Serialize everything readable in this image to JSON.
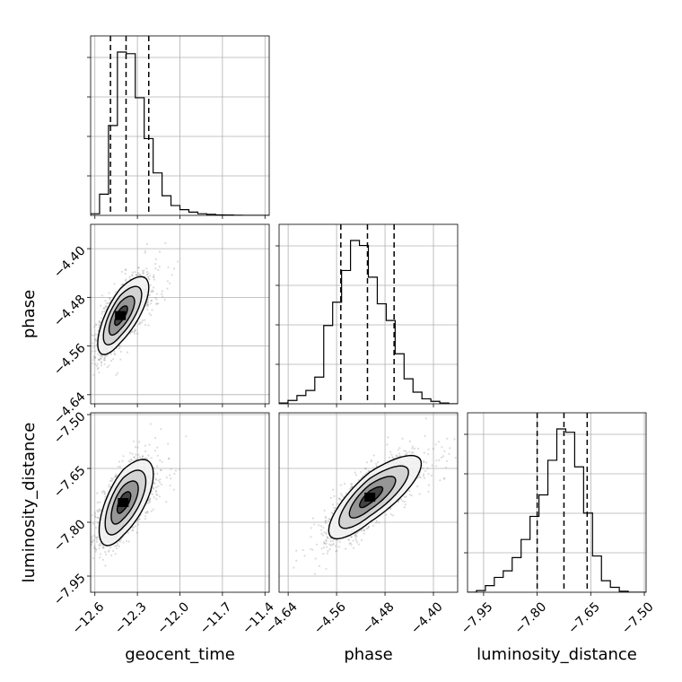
{
  "chart_data": {
    "type": "corner",
    "parameters": [
      "geocent_time",
      "phase",
      "luminosity_distance"
    ],
    "axes": {
      "geocent_time": {
        "label": "geocent_time",
        "range": [
          -12.63,
          -11.37
        ],
        "ticks": [
          -12.6,
          -12.3,
          -12.0,
          -11.7,
          -11.4
        ],
        "tick_labels": [
          "−12.6",
          "−12.3",
          "−12.0",
          "−11.7",
          "−11.4"
        ]
      },
      "phase": {
        "label": "phase",
        "range": [
          -4.655,
          -4.36
        ],
        "ticks": [
          -4.64,
          -4.56,
          -4.48,
          -4.4
        ],
        "tick_labels": [
          "−4.64",
          "−4.56",
          "−4.48",
          "−4.40"
        ]
      },
      "luminosity_distance": {
        "label": "luminosity_distance",
        "range": [
          -7.995,
          -7.495
        ],
        "ticks": [
          -7.95,
          -7.8,
          -7.65,
          -7.5
        ],
        "tick_labels": [
          "−7.95",
          "−7.80",
          "−7.65",
          "−7.50"
        ]
      }
    },
    "histograms": [
      {
        "parameter": "geocent_time",
        "bin_edges": [
          -12.63,
          -12.567,
          -12.504,
          -12.441,
          -12.378,
          -12.315,
          -12.252,
          -12.189,
          -12.126,
          -12.063,
          -12.0,
          -11.937,
          -11.874,
          -11.811,
          -11.748,
          -11.685,
          -11.622,
          -11.559,
          -11.496,
          -11.433,
          -11.37
        ],
        "counts": [
          0.01,
          0.13,
          0.55,
          1.0,
          0.99,
          0.72,
          0.47,
          0.26,
          0.12,
          0.06,
          0.035,
          0.02,
          0.01,
          0.006,
          0.003,
          0.002,
          0.001,
          0,
          0,
          0
        ],
        "quantiles": [
          -12.49,
          -12.38,
          -12.22
        ]
      },
      {
        "parameter": "phase",
        "bin_edges": [
          -4.655,
          -4.64025,
          -4.6255,
          -4.61075,
          -4.596,
          -4.58125,
          -4.5665,
          -4.55175,
          -4.537,
          -4.52225,
          -4.5075,
          -4.49275,
          -4.478,
          -4.46325,
          -4.4485,
          -4.43375,
          -4.419,
          -4.40425,
          -4.3895,
          -4.37475,
          -4.36
        ],
        "counts": [
          0.005,
          0.02,
          0.05,
          0.08,
          0.16,
          0.47,
          0.61,
          0.8,
          0.98,
          0.95,
          0.76,
          0.6,
          0.5,
          0.3,
          0.15,
          0.07,
          0.03,
          0.015,
          0.005,
          0
        ],
        "quantiles": [
          -4.553,
          -4.509,
          -4.465
        ]
      },
      {
        "parameter": "luminosity_distance",
        "bin_edges": [
          -7.995,
          -7.97,
          -7.945,
          -7.92,
          -7.895,
          -7.87,
          -7.845,
          -7.82,
          -7.795,
          -7.77,
          -7.745,
          -7.72,
          -7.695,
          -7.67,
          -7.645,
          -7.62,
          -7.595,
          -7.57,
          -7.545,
          -7.52,
          -7.495
        ],
        "counts": [
          0,
          0.01,
          0.04,
          0.09,
          0.13,
          0.21,
          0.32,
          0.46,
          0.59,
          0.8,
          0.99,
          0.97,
          0.76,
          0.48,
          0.22,
          0.07,
          0.03,
          0.006,
          0,
          0
        ],
        "quantiles": [
          -7.8,
          -7.725,
          -7.66
        ]
      }
    ],
    "pairs": [
      {
        "x": "geocent_time",
        "y": "phase",
        "center": [
          -12.42,
          -4.51
        ],
        "sigma": [
          0.08,
          0.032
        ],
        "correlation": 0.72,
        "contours_sigma": [
          0.5,
          1.0,
          1.5,
          2.0
        ]
      },
      {
        "x": "geocent_time",
        "y": "luminosity_distance",
        "center": [
          -12.4,
          -7.745
        ],
        "sigma": [
          0.085,
          0.06
        ],
        "correlation": 0.65,
        "contours_sigma": [
          0.5,
          1.0,
          1.5,
          2.0
        ]
      },
      {
        "x": "phase",
        "y": "luminosity_distance",
        "center": [
          -4.505,
          -7.73
        ],
        "sigma": [
          0.034,
          0.058
        ],
        "correlation": 0.8,
        "contours_sigma": [
          0.5,
          1.0,
          1.5,
          2.0
        ]
      }
    ],
    "grid": true,
    "colors": {
      "marks": "#000000",
      "grid": "#b0b0b0",
      "scatter": "#808080"
    }
  }
}
